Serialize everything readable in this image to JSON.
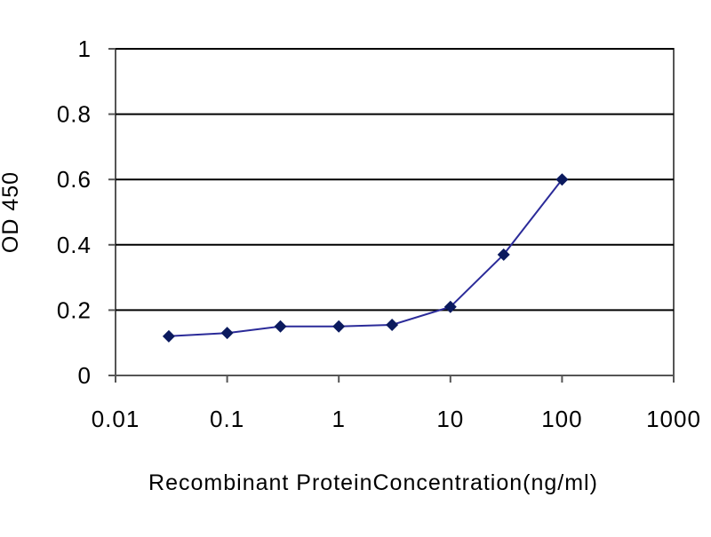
{
  "chart_data": {
    "type": "line",
    "title": "",
    "xlabel": "Recombinant ProteinConcentration(ng/ml)",
    "ylabel": "OD 450",
    "x_scale": "log",
    "xlim": [
      0.01,
      1000
    ],
    "ylim": [
      0,
      1
    ],
    "x_tick_labels": [
      "0.01",
      "0.1",
      "1",
      "10",
      "100",
      "1000"
    ],
    "y_tick_labels": [
      "0",
      "0.2",
      "0.4",
      "0.6",
      "0.8",
      "1"
    ],
    "grid": "horizontal",
    "legend": "none",
    "series": [
      {
        "x": [
          0.03,
          0.1,
          0.3,
          1,
          3,
          10,
          30,
          100
        ],
        "y": [
          0.12,
          0.13,
          0.15,
          0.15,
          0.155,
          0.21,
          0.37,
          0.6
        ]
      }
    ]
  },
  "colors": {
    "series": "#2b2b99",
    "marker": "#0b1a5e",
    "plot_background": "#ffffff",
    "axis": "#555555",
    "gridline": "#000000"
  }
}
